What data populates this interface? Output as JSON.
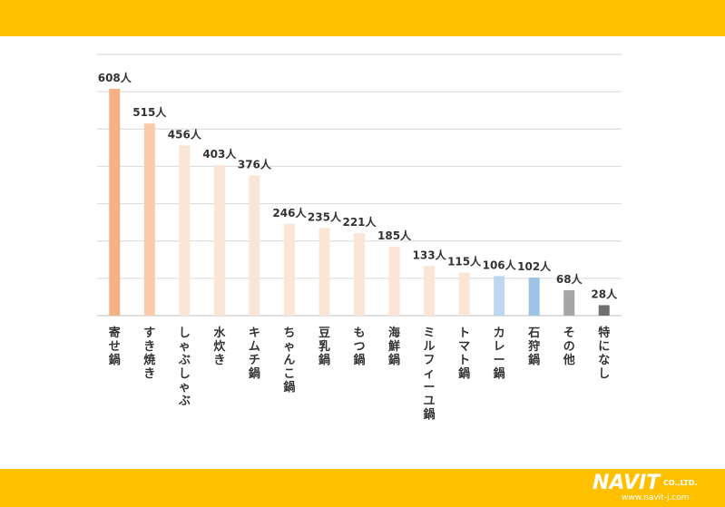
{
  "chart_data": {
    "type": "bar",
    "categories": [
      "寄せ鍋",
      "すき焼き",
      "しゃぶしゃぶ",
      "水炊き",
      "キムチ鍋",
      "ちゃんこ鍋",
      "豆乳鍋",
      "もつ鍋",
      "海鮮鍋",
      "ミルフィーユ鍋",
      "トマト鍋",
      "カレー鍋",
      "石狩鍋",
      "その他",
      "特になし"
    ],
    "values": [
      608,
      515,
      456,
      403,
      376,
      246,
      235,
      221,
      185,
      133,
      115,
      106,
      102,
      68,
      28
    ],
    "value_labels": [
      "608人",
      "515人",
      "456人",
      "403人",
      "376人",
      "246人",
      "235人",
      "221人",
      "185人",
      "133人",
      "115人",
      "106人",
      "102人",
      "68人",
      "28人"
    ],
    "bar_colors": [
      "#F4B183",
      "#F8CBAD",
      "#FBE5D6",
      "#FBE5D6",
      "#FBE5D6",
      "#FBE5D6",
      "#FBE5D6",
      "#FBE5D6",
      "#FBE5D6",
      "#FBE5D6",
      "#FBE5D6",
      "#BDD7EE",
      "#9DC3E6",
      "#A6A6A6",
      "#707070"
    ],
    "ylim": [
      0,
      700
    ],
    "grid": true,
    "title": "",
    "xlabel": "",
    "ylabel": ""
  },
  "colors": {
    "band": "#FFC000",
    "gridline": "#D9D9D9"
  },
  "logo": {
    "main": "NAVIT",
    "suffix": "CO.,LTD.",
    "url": "www.navit-j.com"
  }
}
